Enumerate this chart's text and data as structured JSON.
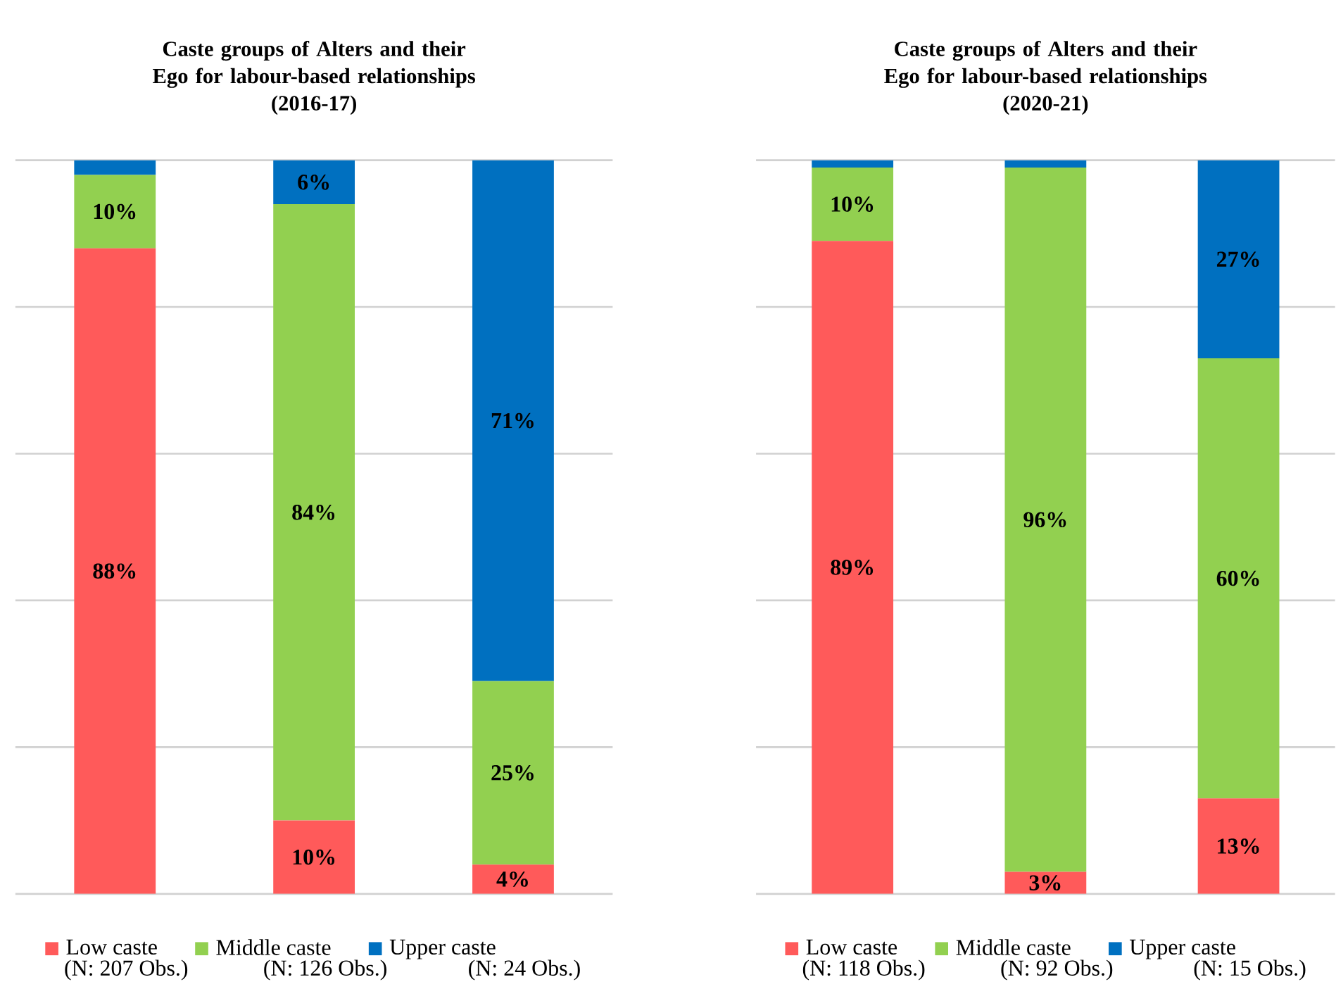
{
  "chart_data": [
    {
      "type": "bar",
      "stacked": true,
      "title": "Caste groups of Alters and their Ego for labour-based relationships",
      "subtitle": "(2016-17)",
      "categories": [
        "(N: 207 Obs.)",
        "(N: 126 Obs.)",
        "(N: 24 Obs.)"
      ],
      "series": [
        {
          "name": "Low caste",
          "color": "#ff5a5a",
          "values": [
            88,
            10,
            4
          ],
          "value_labels": [
            "88%",
            "10%",
            "4%"
          ]
        },
        {
          "name": "Middle caste",
          "color": "#92d050",
          "values": [
            10,
            84,
            25
          ],
          "value_labels": [
            "10%",
            "84%",
            "25%"
          ]
        },
        {
          "name": "Upper caste",
          "color": "#0070c0",
          "values": [
            2,
            6,
            71
          ],
          "value_labels": [
            null,
            "6%",
            "71%"
          ]
        }
      ],
      "ylim": [
        0,
        100
      ],
      "yticks": [
        {
          "value": 0,
          "label": null
        },
        {
          "value": 20,
          "label": null
        },
        {
          "value": 40,
          "label": null
        },
        {
          "value": 60,
          "label": null
        },
        {
          "value": 80,
          "label": null
        },
        {
          "value": 100,
          "label": null
        }
      ],
      "grid": "y",
      "tick_labels": "x",
      "legend": "bottom"
    },
    {
      "type": "bar",
      "stacked": true,
      "title": "Caste groups of Alters and their Ego for labour-based relationships",
      "subtitle": "(2020-21)",
      "categories": [
        "(N: 118 Obs.)",
        "(N: 92 Obs.)",
        "(N: 15 Obs.)"
      ],
      "series": [
        {
          "name": "Low caste",
          "color": "#ff5a5a",
          "values": [
            89,
            3,
            13
          ],
          "value_labels": [
            "89%",
            "3%",
            "13%"
          ]
        },
        {
          "name": "Middle caste",
          "color": "#92d050",
          "values": [
            10,
            96,
            60
          ],
          "value_labels": [
            "10%",
            "96%",
            "60%"
          ]
        },
        {
          "name": "Upper caste",
          "color": "#0070c0",
          "values": [
            1,
            1,
            27
          ],
          "value_labels": [
            null,
            null,
            "27%"
          ]
        }
      ],
      "ylim": [
        0,
        100
      ],
      "yticks": [
        {
          "value": 0,
          "label": null
        },
        {
          "value": 20,
          "label": null
        },
        {
          "value": 40,
          "label": null
        },
        {
          "value": 60,
          "label": null
        },
        {
          "value": 80,
          "label": null
        },
        {
          "value": 100,
          "label": null
        }
      ],
      "grid": "y",
      "tick_labels": "x",
      "legend": "bottom"
    }
  ]
}
